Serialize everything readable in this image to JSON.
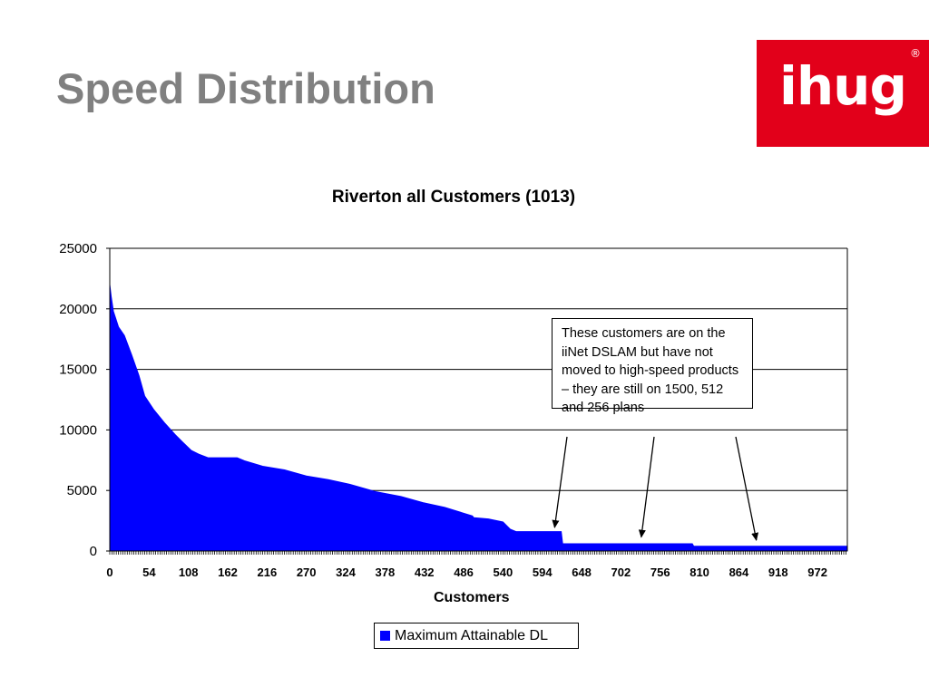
{
  "slide": {
    "title": "Speed Distribution"
  },
  "logo": {
    "text": "ihug",
    "registered_mark": "®",
    "color": "#e2001a"
  },
  "chart_data": {
    "type": "area",
    "title": "Riverton all Customers (1013)",
    "xlabel": "Customers",
    "ylabel": "",
    "xlim": [
      0,
      1013
    ],
    "ylim": [
      0,
      25000
    ],
    "y_ticks": [
      0,
      5000,
      10000,
      15000,
      20000,
      25000
    ],
    "x_ticks": [
      0,
      54,
      108,
      162,
      216,
      270,
      324,
      378,
      432,
      486,
      540,
      594,
      648,
      702,
      756,
      810,
      864,
      918,
      972
    ],
    "grid": "horizontal",
    "legend_position": "bottom",
    "series": [
      {
        "name": "Maximum Attainable DL",
        "color": "#0000ff",
        "points": [
          [
            0,
            22000
          ],
          [
            2,
            21000
          ],
          [
            5,
            19800
          ],
          [
            12,
            18500
          ],
          [
            20,
            17800
          ],
          [
            30,
            16200
          ],
          [
            40,
            14500
          ],
          [
            48,
            12800
          ],
          [
            60,
            11700
          ],
          [
            75,
            10600
          ],
          [
            90,
            9600
          ],
          [
            100,
            9000
          ],
          [
            112,
            8300
          ],
          [
            122,
            8000
          ],
          [
            135,
            7700
          ],
          [
            175,
            7700
          ],
          [
            185,
            7450
          ],
          [
            210,
            7000
          ],
          [
            240,
            6700
          ],
          [
            270,
            6200
          ],
          [
            300,
            5900
          ],
          [
            330,
            5500
          ],
          [
            365,
            4900
          ],
          [
            400,
            4500
          ],
          [
            430,
            4000
          ],
          [
            460,
            3600
          ],
          [
            498,
            2900
          ],
          [
            500,
            2750
          ],
          [
            520,
            2650
          ],
          [
            540,
            2400
          ],
          [
            550,
            1800
          ],
          [
            558,
            1600
          ],
          [
            620,
            1600
          ],
          [
            622,
            600
          ],
          [
            800,
            600
          ],
          [
            802,
            400
          ],
          [
            1013,
            400
          ]
        ]
      }
    ],
    "annotations": [
      {
        "text": "These customers are on the iiNet DSLAM but have not moved to high-speed products – they are still on 1500, 512 and 256 plans",
        "arrows_point_to": [
          [
            611,
            1500
          ],
          [
            730,
            700
          ],
          [
            888,
            450
          ]
        ]
      }
    ]
  }
}
